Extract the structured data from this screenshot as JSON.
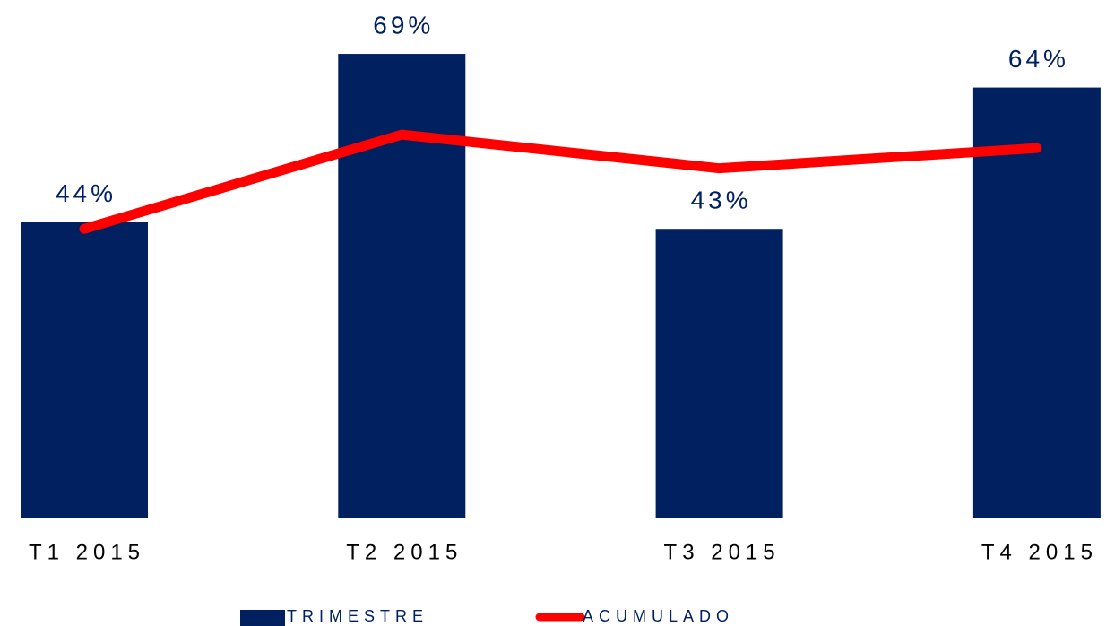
{
  "chart_data": {
    "type": "bar",
    "categories": [
      "T1 2015",
      "T2 2015",
      "T3 2015",
      "T4 2015"
    ],
    "series": [
      {
        "name": "TRIMESTRE",
        "type": "bar",
        "color": "#002060",
        "values": [
          44,
          69,
          43,
          64
        ],
        "value_labels": [
          "44%",
          "69%",
          "43%",
          "64%"
        ]
      },
      {
        "name": "ACUMULADO",
        "type": "line",
        "color": "#ff0000",
        "values": [
          43,
          57,
          52,
          55
        ]
      }
    ],
    "ylim": [
      0,
      77
    ],
    "legend": "bottom"
  }
}
